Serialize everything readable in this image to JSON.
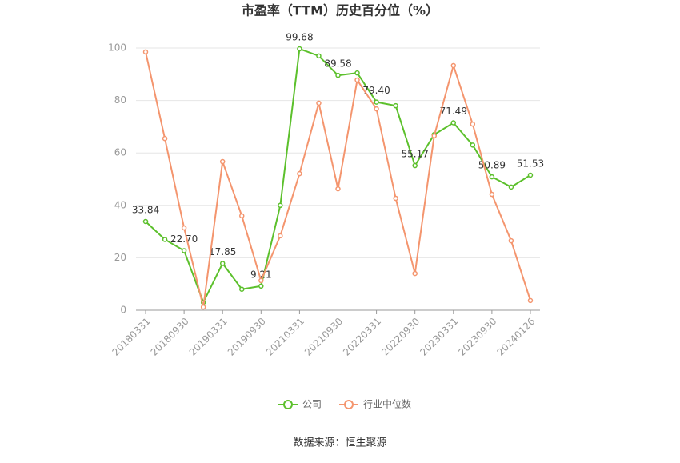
{
  "chart_data": {
    "type": "line",
    "title": "市盈率（TTM）历史百分位（%）",
    "source": "数据来源：恒生聚源",
    "categories": [
      "20180331",
      null,
      "20180930",
      null,
      "20190331",
      null,
      "20190930",
      null,
      "20210331",
      null,
      "20210930",
      null,
      "20220331",
      null,
      "20220930",
      null,
      "20230331",
      null,
      "20230930",
      null,
      "20240126"
    ],
    "series": [
      {
        "name": "公司",
        "color": "#5cc02c",
        "values": [
          33.84,
          27,
          22.7,
          3,
          17.85,
          8,
          9.21,
          40,
          99.68,
          97,
          89.58,
          90.5,
          79.4,
          78,
          55.17,
          67,
          71.49,
          63,
          50.89,
          47,
          51.53
        ],
        "value_labels": [
          "33.84",
          null,
          "22.70",
          null,
          "17.85",
          null,
          "9.21",
          null,
          "99.68",
          null,
          "89.58",
          null,
          "79.40",
          null,
          "55.17",
          null,
          "71.49",
          null,
          "50.89",
          null,
          "51.53"
        ]
      },
      {
        "name": "行业中位数",
        "color": "#f4956e",
        "values": [
          98.5,
          65.5,
          31.4,
          1.2,
          56.7,
          36,
          11.3,
          28.4,
          52.1,
          79,
          46.3,
          87.8,
          76.8,
          42.7,
          14,
          66.5,
          93.3,
          71,
          44.2,
          26.5,
          3.7
        ]
      }
    ],
    "ylim": [
      0,
      100
    ],
    "yticks": [
      0,
      20,
      40,
      60,
      80,
      100
    ],
    "grid": true,
    "legend": "bottom"
  }
}
